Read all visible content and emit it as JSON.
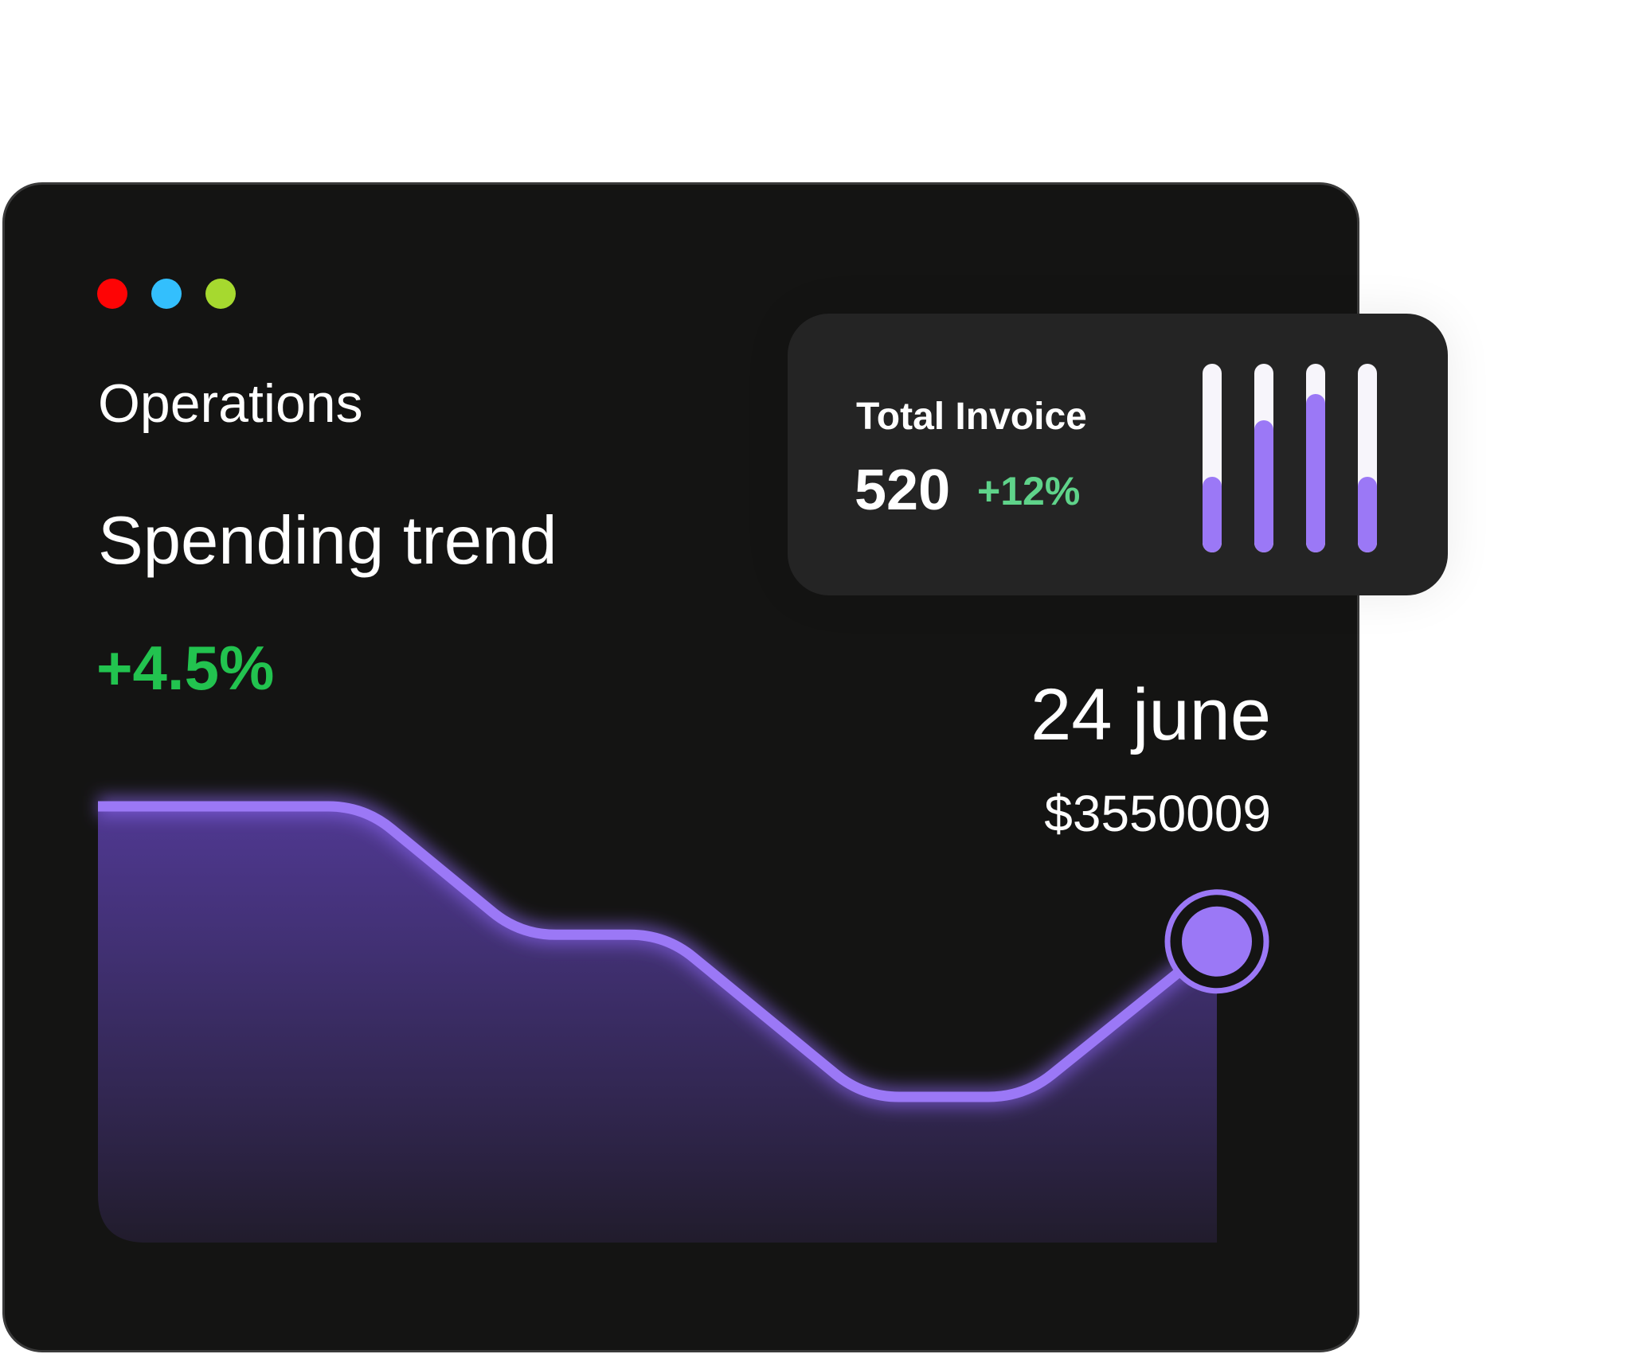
{
  "window": {
    "controls": [
      {
        "name": "close",
        "color": "#fe0405"
      },
      {
        "name": "minimize",
        "color": "#33bffd"
      },
      {
        "name": "maximize",
        "color": "#a6d92f"
      }
    ],
    "section_title": "Operations",
    "chart_title": "Spending trend",
    "change": "+4.5%",
    "change_color": "#22c34f",
    "selected_date": "24 june",
    "selected_amount": "$3550009"
  },
  "invoice_card": {
    "title": "Total Invoice",
    "value": "520",
    "change": "+12%",
    "change_color": "#5fd38a",
    "bars": [
      0.4,
      0.7,
      0.84,
      0.4
    ]
  },
  "colors": {
    "accent": "#9b78f6",
    "background": "#141413",
    "card": "#242424"
  },
  "chart_data": {
    "type": "area",
    "title": "Spending trend",
    "values": [
      100,
      100,
      62,
      62,
      14,
      14,
      60
    ],
    "highlighted_index": 6,
    "highlight_label": "24 june",
    "highlight_value": "$3550009",
    "grid": false,
    "ylim": [
      0,
      100
    ]
  }
}
